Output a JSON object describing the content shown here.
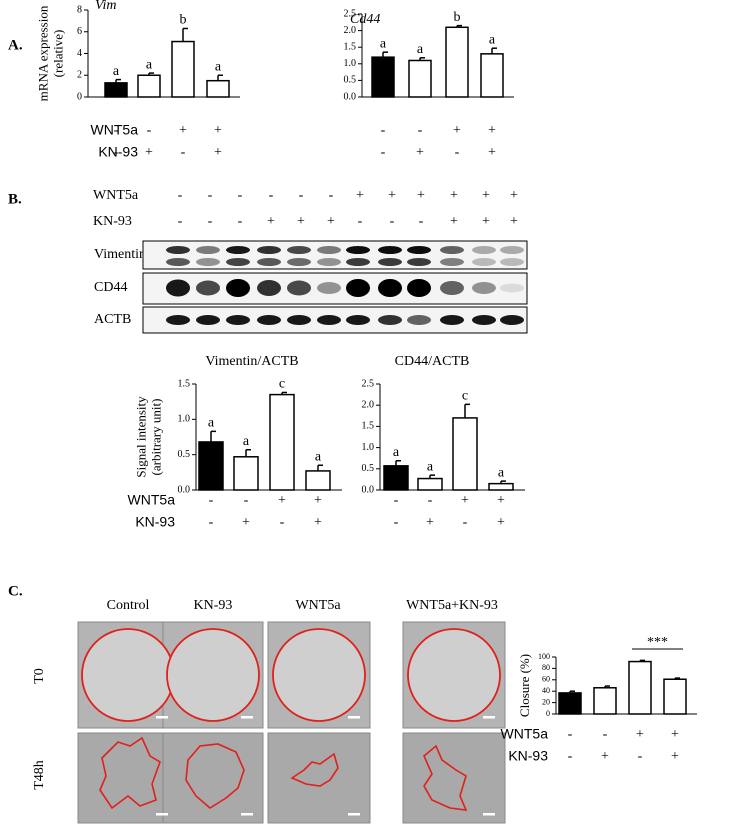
{
  "panels": {
    "a": "A.",
    "b": "B.",
    "c": "C."
  },
  "blot": {
    "treatments": [
      {
        "name": "WNT5a",
        "signs": [
          "-",
          "-",
          "-",
          "-",
          "-",
          "-",
          "+",
          "+",
          "+",
          "+",
          "+",
          "+"
        ]
      },
      {
        "name": "KN-93",
        "signs": [
          "-",
          "-",
          "-",
          "+",
          "+",
          "+",
          "-",
          "-",
          "-",
          "+",
          "+",
          "+"
        ]
      }
    ],
    "bands": [
      "Vimentin",
      "CD44",
      "ACTB"
    ]
  },
  "scratch": {
    "columns": [
      "Control",
      "KN-93",
      "WNT5a",
      "WNT5a+KN-93"
    ],
    "rows": [
      "T0",
      "T48h"
    ]
  },
  "chart_data": [
    {
      "type": "bar",
      "title": "Vim",
      "y_label": [
        "mRNA expression",
        "(relative)"
      ],
      "categories": [
        null,
        null,
        null,
        null
      ],
      "values": [
        1.3,
        2.0,
        5.1,
        1.5
      ],
      "errors": [
        0.3,
        0.2,
        1.2,
        0.5
      ],
      "group_labels": [
        "a",
        "a",
        "b",
        "a"
      ],
      "colors": [
        "#000000",
        "#ffffff",
        "#ffffff",
        "#ffffff"
      ],
      "ylim": [
        0,
        8
      ],
      "yticks": [
        0,
        2,
        4,
        6,
        8
      ],
      "treatments": [
        {
          "name": "WNT5a",
          "signs": [
            "-",
            "-",
            "+",
            "+"
          ]
        },
        {
          "name": "KN-93",
          "signs": [
            "-",
            "+",
            "-",
            "+"
          ]
        }
      ]
    },
    {
      "type": "bar",
      "title": "Cd44",
      "categories": [
        null,
        null,
        null,
        null
      ],
      "values": [
        1.2,
        1.1,
        2.1,
        1.3
      ],
      "errors": [
        0.15,
        0.08,
        0.05,
        0.17
      ],
      "group_labels": [
        "a",
        "a",
        "b",
        "a"
      ],
      "colors": [
        "#000000",
        "#ffffff",
        "#ffffff",
        "#ffffff"
      ],
      "ylim": [
        0,
        2.5
      ],
      "yticks": [
        {
          "value": 0,
          "label": "0.0"
        },
        0.5,
        {
          "value": 1,
          "label": "1.0"
        },
        1.5,
        {
          "value": 2,
          "label": "2.0"
        },
        2.5
      ],
      "treatments": [
        {
          "signs": [
            "-",
            "-",
            "+",
            "+"
          ]
        },
        {
          "signs": [
            "-",
            "+",
            "-",
            "+"
          ]
        }
      ]
    },
    {
      "type": "bar",
      "title": "Vimentin/ACTB",
      "y_label": [
        "Signal intensity",
        "(arbitrary  unit)"
      ],
      "categories": [
        null,
        null,
        null,
        null
      ],
      "values": [
        0.68,
        0.47,
        1.35,
        0.27
      ],
      "errors": [
        0.15,
        0.1,
        0.03,
        0.08
      ],
      "group_labels": [
        "a",
        "a",
        "c",
        "a"
      ],
      "colors": [
        "#000000",
        "#ffffff",
        "#ffffff",
        "#ffffff"
      ],
      "ylim": [
        0,
        1.5
      ],
      "yticks": [
        {
          "value": 0,
          "label": "0.0"
        },
        0.5,
        {
          "value": 1,
          "label": "1.0"
        },
        1.5
      ],
      "treatments": [
        {
          "name": "WNT5a",
          "signs": [
            "-",
            "-",
            "+",
            "+"
          ]
        },
        {
          "name": "KN-93",
          "signs": [
            "-",
            "+",
            "-",
            "+"
          ]
        }
      ]
    },
    {
      "type": "bar",
      "title": "CD44/ACTB",
      "categories": [
        null,
        null,
        null,
        null
      ],
      "values": [
        0.57,
        0.27,
        1.7,
        0.15
      ],
      "errors": [
        0.12,
        0.08,
        0.32,
        0.06
      ],
      "group_labels": [
        "a",
        "a",
        "c",
        "a"
      ],
      "colors": [
        "#000000",
        "#ffffff",
        "#ffffff",
        "#ffffff"
      ],
      "ylim": [
        0,
        2.5
      ],
      "yticks": [
        {
          "value": 0,
          "label": "0.0"
        },
        0.5,
        {
          "value": 1,
          "label": "1.0"
        },
        1.5,
        {
          "value": 2,
          "label": "2.0"
        },
        2.5
      ],
      "treatments": [
        {
          "signs": [
            "-",
            "-",
            "+",
            "+"
          ]
        },
        {
          "signs": [
            "-",
            "+",
            "-",
            "+"
          ]
        }
      ]
    },
    {
      "type": "bar",
      "y_label": [
        "Closure (%)"
      ],
      "categories": [
        null,
        null,
        null,
        null
      ],
      "values": [
        37,
        46,
        92,
        61
      ],
      "errors": [
        3,
        3,
        2,
        2
      ],
      "colors": [
        "#000000",
        "#ffffff",
        "#ffffff",
        "#ffffff"
      ],
      "ylim": [
        0,
        100
      ],
      "yticks": [
        0,
        20,
        40,
        60,
        80,
        100
      ],
      "annotation": "***",
      "treatments": [
        {
          "name": "WNT5a",
          "signs": [
            "-",
            "-",
            "+",
            "+"
          ]
        },
        {
          "name": "KN-93",
          "signs": [
            "-",
            "+",
            "-",
            "+"
          ]
        }
      ]
    }
  ]
}
